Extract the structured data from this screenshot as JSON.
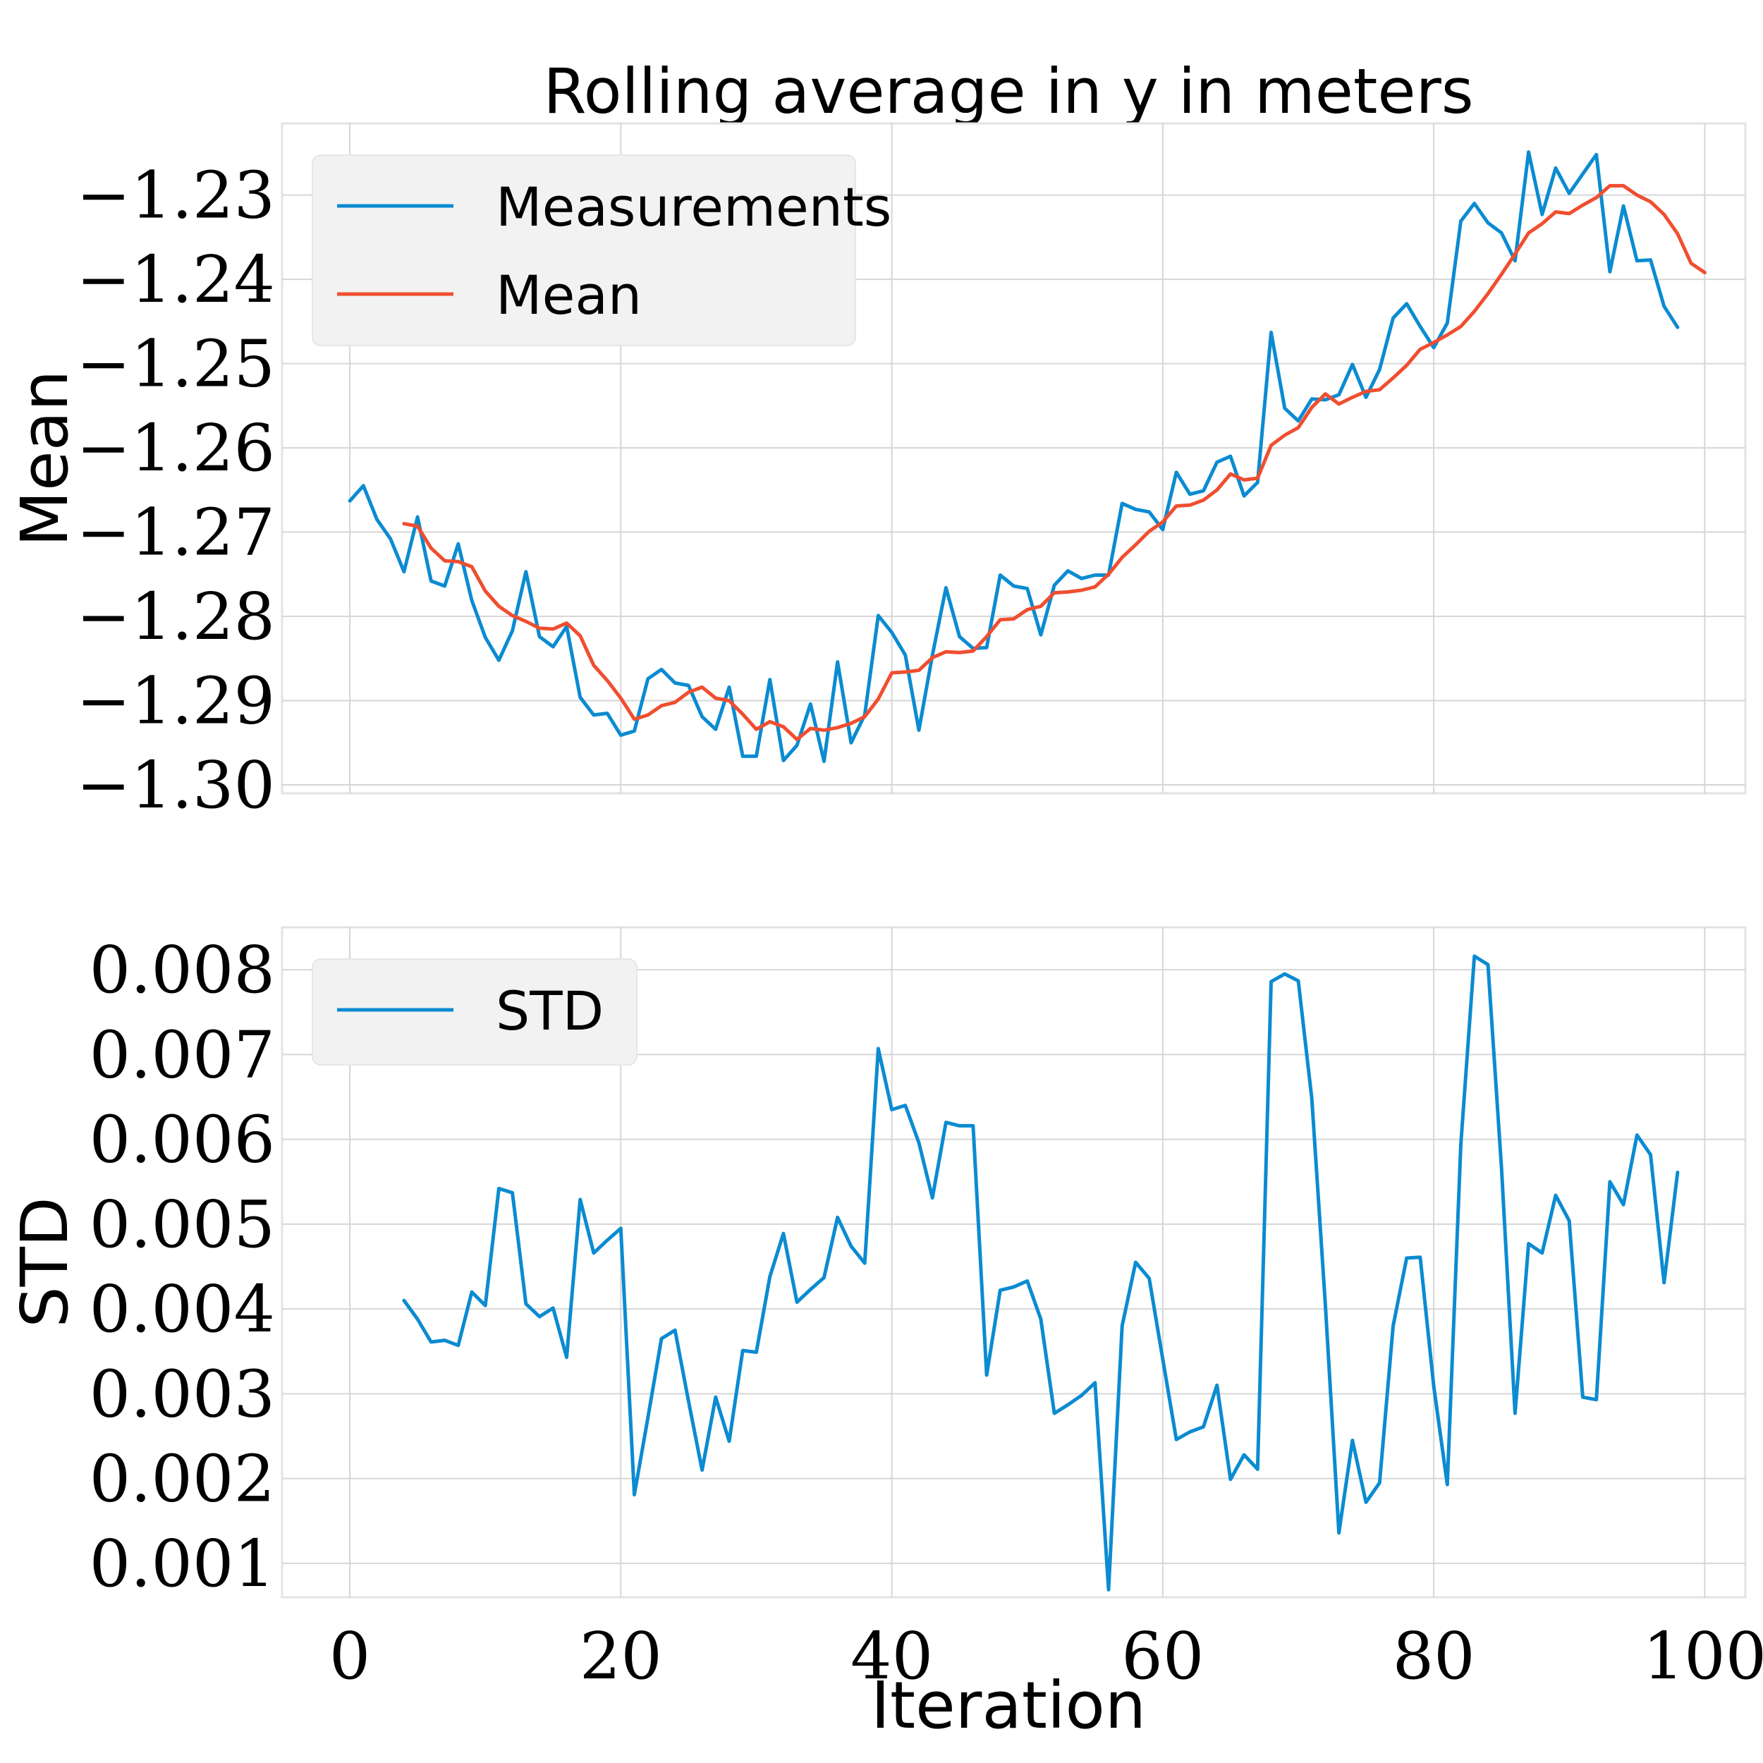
{
  "figure": {
    "title": "Rolling average in y in meters",
    "xlabel": "Iteration"
  },
  "colors": {
    "measurements": "#0b8bd1",
    "mean": "#f04e30",
    "std": "#0b8bd1",
    "grid": "#d6d6d6",
    "legend_bg": "#f2f2f2"
  },
  "chart_data": [
    {
      "type": "line",
      "title": "Rolling average in y in meters",
      "xlabel": "",
      "ylabel": "Mean",
      "xlim": [
        -5,
        103
      ],
      "ylim": [
        -1.301,
        -1.2215
      ],
      "xticks": [
        0,
        20,
        40,
        60,
        80,
        100
      ],
      "yticks": [
        -1.3,
        -1.29,
        -1.28,
        -1.27,
        -1.26,
        -1.25,
        -1.24,
        -1.23
      ],
      "ytick_labels": [
        "−1.30",
        "−1.29",
        "−1.28",
        "−1.27",
        "−1.26",
        "−1.25",
        "−1.24",
        "−1.23"
      ],
      "grid": true,
      "legend": "top-left",
      "series": [
        {
          "name": "Measurements",
          "x_start": 0,
          "values": [
            -1.2663,
            -1.2645,
            -1.2685,
            -1.2708,
            -1.2747,
            -1.2682,
            -1.2758,
            -1.2764,
            -1.2714,
            -1.2781,
            -1.2825,
            -1.2852,
            -1.2817,
            -1.2747,
            -1.2824,
            -1.2836,
            -1.2812,
            -1.2896,
            -1.2917,
            -1.2915,
            -1.2941,
            -1.2936,
            -1.2874,
            -1.2863,
            -1.2879,
            -1.2882,
            -1.2919,
            -1.2934,
            -1.2884,
            -1.2966,
            -1.2966,
            -1.2875,
            -1.2971,
            -1.2953,
            -1.2904,
            -1.2972,
            -1.2854,
            -1.295,
            -1.2917,
            -1.2799,
            -1.2819,
            -1.2846,
            -1.2935,
            -1.2846,
            -1.2766,
            -1.2824,
            -1.2838,
            -1.2837,
            -1.2751,
            -1.2764,
            -1.2767,
            -1.2822,
            -1.2763,
            -1.2746,
            -1.2755,
            -1.2751,
            -1.2751,
            -1.2666,
            -1.2673,
            -1.2676,
            -1.2697,
            -1.2629,
            -1.2655,
            -1.2651,
            -1.2617,
            -1.261,
            -1.2657,
            -1.2641,
            -1.2463,
            -1.2553,
            -1.2568,
            -1.2542,
            -1.2543,
            -1.2537,
            -1.2501,
            -1.254,
            -1.2507,
            -1.2446,
            -1.2429,
            -1.2456,
            -1.2481,
            -1.2452,
            -1.2331,
            -1.231,
            -1.2333,
            -1.2345,
            -1.2378,
            -1.2249,
            -1.2323,
            -1.2268,
            -1.2298,
            -1.2275,
            -1.2252,
            -1.2391,
            -1.2313,
            -1.2378,
            -1.2377,
            -1.2432,
            -1.2457
          ]
        },
        {
          "name": "Mean",
          "x_start": 4,
          "values": [
            -1.269,
            -1.2693,
            -1.2719,
            -1.2734,
            -1.2735,
            -1.2741,
            -1.277,
            -1.2788,
            -1.2799,
            -1.2806,
            -1.2814,
            -1.2815,
            -1.2808,
            -1.2823,
            -1.2858,
            -1.2876,
            -1.2897,
            -1.2922,
            -1.2917,
            -1.2906,
            -1.2902,
            -1.289,
            -1.2884,
            -1.2897,
            -1.29,
            -1.2916,
            -1.2934,
            -1.2925,
            -1.2931,
            -1.2946,
            -1.2933,
            -1.2935,
            -1.2932,
            -1.2927,
            -1.2919,
            -1.2898,
            -1.2867,
            -1.2866,
            -1.2864,
            -1.2849,
            -1.2842,
            -1.2843,
            -1.2841,
            -1.2824,
            -1.2804,
            -1.2803,
            -1.2792,
            -1.2788,
            -1.2772,
            -1.2771,
            -1.2769,
            -1.2765,
            -1.275,
            -1.273,
            -1.2715,
            -1.2699,
            -1.2688,
            -1.2669,
            -1.2668,
            -1.2662,
            -1.265,
            -1.2631,
            -1.2638,
            -1.2636,
            -1.2597,
            -1.2585,
            -1.2576,
            -1.2552,
            -1.2536,
            -1.2548,
            -1.254,
            -1.2533,
            -1.2531,
            -1.2517,
            -1.2502,
            -1.2483,
            -1.2475,
            -1.2466,
            -1.2456,
            -1.2438,
            -1.2417,
            -1.2394,
            -1.237,
            -1.2345,
            -1.2334,
            -1.232,
            -1.2322,
            -1.2312,
            -1.2303,
            -1.2289,
            -1.2289,
            -1.23,
            -1.2308,
            -1.2323,
            -1.2346,
            -1.2381,
            -1.2392
          ]
        }
      ]
    },
    {
      "type": "line",
      "title": "",
      "xlabel": "Iteration",
      "ylabel": "STD",
      "xlim": [
        -5,
        103
      ],
      "ylim": [
        0.0006,
        0.0085
      ],
      "xticks": [
        0,
        20,
        40,
        60,
        80,
        100
      ],
      "yticks": [
        0.001,
        0.002,
        0.003,
        0.004,
        0.005,
        0.006,
        0.007,
        0.008
      ],
      "ytick_labels": [
        "0.001",
        "0.002",
        "0.003",
        "0.004",
        "0.005",
        "0.006",
        "0.007",
        "0.008"
      ],
      "grid": true,
      "legend": "top-left",
      "series": [
        {
          "name": "STD",
          "x_start": 4,
          "values": [
            0.0041,
            0.00388,
            0.00361,
            0.00363,
            0.00357,
            0.0042,
            0.00404,
            0.00542,
            0.00537,
            0.00406,
            0.00391,
            0.00401,
            0.00343,
            0.00529,
            0.00466,
            0.00481,
            0.00495,
            0.00181,
            0.00272,
            0.00365,
            0.00375,
            0.00291,
            0.0021,
            0.00296,
            0.00244,
            0.00351,
            0.00349,
            0.00438,
            0.00489,
            0.00408,
            0.00423,
            0.00437,
            0.00508,
            0.00474,
            0.00454,
            0.00707,
            0.00635,
            0.0064,
            0.00596,
            0.00531,
            0.0062,
            0.00616,
            0.00616,
            0.00322,
            0.00422,
            0.00426,
            0.00433,
            0.00388,
            0.00277,
            0.00287,
            0.00298,
            0.00313,
            0.00069,
            0.0038,
            0.00455,
            0.00436,
            0.00341,
            0.00246,
            0.00255,
            0.00261,
            0.0031,
            0.00199,
            0.00228,
            0.00211,
            0.00786,
            0.00795,
            0.00787,
            0.00648,
            0.00405,
            0.00136,
            0.00245,
            0.00172,
            0.00195,
            0.0038,
            0.0046,
            0.00461,
            0.00309,
            0.00193,
            0.00594,
            0.00816,
            0.00806,
            0.00566,
            0.00277,
            0.00477,
            0.00466,
            0.00534,
            0.00504,
            0.00296,
            0.00293,
            0.0055,
            0.00523,
            0.00605,
            0.00582,
            0.00431,
            0.00561
          ]
        }
      ]
    }
  ]
}
